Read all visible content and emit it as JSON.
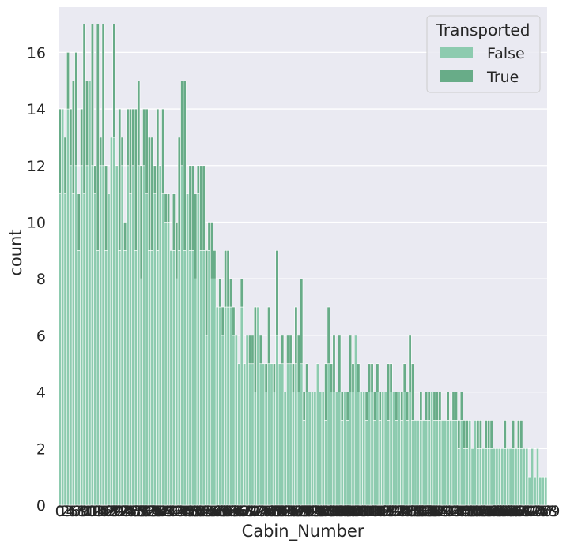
{
  "chart_data": {
    "type": "bar",
    "title": "",
    "xlabel": "Cabin_Number",
    "ylabel": "count",
    "ylim": [
      0,
      17.6
    ],
    "yticks": [
      0,
      2,
      4,
      6,
      8,
      10,
      12,
      14,
      16
    ],
    "grid": true,
    "x_tick_labels_overlapping": true,
    "legend": {
      "title": "Transported",
      "position": "top-right",
      "entries": [
        {
          "name": "False",
          "color": "#8dcbaf"
        },
        {
          "name": "True",
          "color": "#68ac88"
        }
      ]
    },
    "category_count": 180,
    "series": [
      {
        "name": "False",
        "color": "#8dcbaf",
        "values": [
          11,
          14,
          11,
          14,
          12,
          11,
          12,
          9,
          12,
          11,
          12,
          15,
          12,
          11,
          9,
          12,
          12,
          9,
          11,
          13,
          13,
          12,
          9,
          12,
          9,
          12,
          11,
          12,
          9,
          12,
          8,
          12,
          11,
          9,
          9,
          11,
          9,
          12,
          11,
          10,
          10,
          9,
          9,
          8,
          9,
          12,
          9,
          11,
          9,
          9,
          8,
          11,
          9,
          9,
          6,
          9,
          8,
          8,
          7,
          7,
          6,
          7,
          7,
          7,
          6,
          6,
          5,
          7,
          5,
          6,
          5,
          5,
          4,
          7,
          5,
          5,
          4,
          5,
          5,
          4,
          6,
          5,
          5,
          4,
          5,
          5,
          4,
          5,
          4,
          5,
          3,
          4,
          4,
          4,
          4,
          5,
          4,
          4,
          3,
          5,
          4,
          4,
          4,
          4,
          3,
          4,
          3,
          4,
          4,
          6,
          4,
          4,
          4,
          3,
          4,
          4,
          3,
          4,
          3,
          4,
          4,
          3,
          4,
          4,
          3,
          4,
          3,
          4,
          3,
          4,
          3,
          3,
          3,
          3,
          3,
          3,
          3,
          4,
          3,
          3,
          3,
          3,
          3,
          3,
          3,
          3,
          3,
          2,
          3,
          2,
          2,
          3,
          2,
          3,
          2,
          2,
          2,
          2,
          2,
          2,
          2,
          2,
          2,
          2,
          2,
          2,
          2,
          2,
          2,
          2,
          2,
          2,
          2,
          1,
          2,
          1,
          2,
          1,
          1,
          1
        ]
      },
      {
        "name": "True",
        "color": "#68ac88",
        "values": [
          3,
          0,
          2,
          2,
          2,
          4,
          4,
          2,
          2,
          6,
          3,
          0,
          5,
          1,
          8,
          1,
          5,
          3,
          0,
          0,
          4,
          0,
          5,
          1,
          1,
          2,
          3,
          2,
          5,
          3,
          4,
          2,
          3,
          4,
          4,
          1,
          5,
          0,
          3,
          1,
          1,
          0,
          2,
          2,
          4,
          3,
          6,
          0,
          3,
          3,
          3,
          1,
          3,
          3,
          3,
          1,
          2,
          1,
          0,
          1,
          1,
          2,
          2,
          1,
          1,
          0,
          0,
          1,
          0,
          0,
          1,
          1,
          3,
          0,
          1,
          0,
          1,
          2,
          0,
          1,
          3,
          0,
          1,
          0,
          1,
          1,
          1,
          2,
          2,
          3,
          1,
          1,
          0,
          0,
          0,
          0,
          0,
          0,
          2,
          2,
          1,
          2,
          0,
          2,
          1,
          0,
          1,
          2,
          1,
          0,
          1,
          0,
          0,
          1,
          1,
          1,
          1,
          1,
          1,
          0,
          0,
          2,
          1,
          0,
          1,
          0,
          1,
          1,
          1,
          2,
          2,
          0,
          0,
          1,
          0,
          1,
          1,
          0,
          1,
          1,
          1,
          0,
          0,
          1,
          0,
          1,
          1,
          1,
          1,
          1,
          1,
          0,
          0,
          0,
          1,
          1,
          0,
          1,
          1,
          1,
          0,
          0,
          0,
          0,
          1,
          0,
          0,
          1,
          0,
          1,
          1,
          0,
          0,
          0,
          0,
          0,
          0,
          0,
          0,
          0
        ]
      }
    ]
  }
}
